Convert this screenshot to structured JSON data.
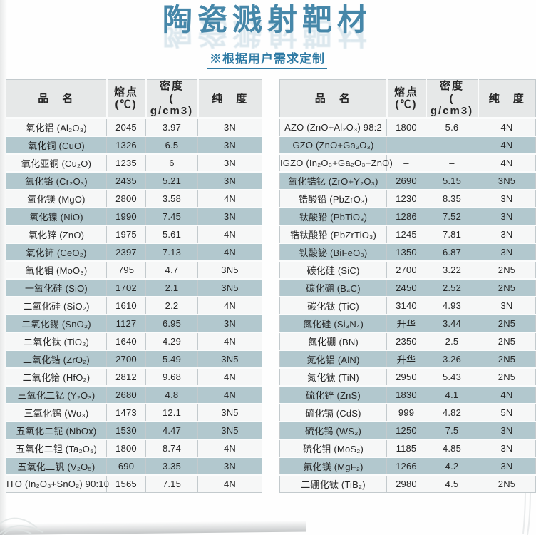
{
  "header": {
    "title": "陶瓷溅射靶材",
    "subtitle": "※根据用户需求定制"
  },
  "columns": [
    {
      "key": "product-name",
      "label": "品　名"
    },
    {
      "key": "melting-point",
      "label": "熔点(℃)"
    },
    {
      "key": "density",
      "label": "密度\n( g/cm3)"
    },
    {
      "key": "purity",
      "label": "纯　度"
    }
  ],
  "tables": [
    {
      "name": "oxide-targets-left",
      "rows": [
        [
          "氧化铝 (Al₂O₃)",
          "2045",
          "3.97",
          "3N"
        ],
        [
          "氧化铜 (CuO)",
          "1326",
          "6.5",
          "3N"
        ],
        [
          "氧化亚铜 (Cu₂O)",
          "1235",
          "6",
          "3N"
        ],
        [
          "氧化铬 (Cr₂O₃)",
          "2435",
          "5.21",
          "3N"
        ],
        [
          "氧化镁 (MgO)",
          "2800",
          "3.58",
          "4N"
        ],
        [
          "氧化镍 (NiO)",
          "1990",
          "7.45",
          "3N"
        ],
        [
          "氧化锌 (ZnO)",
          "1975",
          "5.61",
          "4N"
        ],
        [
          "氧化铈 (CeO₂)",
          "2397",
          "7.13",
          "4N"
        ],
        [
          "氧化钼 (MoO₃)",
          "795",
          "4.7",
          "3N5"
        ],
        [
          "一氧化硅 (SiO)",
          "1702",
          "2.1",
          "3N5"
        ],
        [
          "二氧化硅 (SiO₂)",
          "1610",
          "2.2",
          "4N"
        ],
        [
          "二氧化锡 (SnO₂)",
          "1127",
          "6.95",
          "3N"
        ],
        [
          "二氧化钛 (TiO₂)",
          "1640",
          "4.29",
          "4N"
        ],
        [
          "二氧化锆 (ZrO₂)",
          "2700",
          "5.49",
          "3N5"
        ],
        [
          "二氧化铪 (HfO₂)",
          "2812",
          "9.68",
          "4N"
        ],
        [
          "三氧化二钇 (Y₂O₃)",
          "2680",
          "4.8",
          "4N"
        ],
        [
          "三氧化钨 (Wo₃)",
          "1473",
          "12.1",
          "3N5"
        ],
        [
          "五氧化二铌 (NbOx)",
          "1530",
          "4.47",
          "3N5"
        ],
        [
          "五氧化二钽 (Ta₂O₅)",
          "1800",
          "8.74",
          "4N"
        ],
        [
          "五氧化二钒 (V₂O₅)",
          "690",
          "3.35",
          "3N"
        ],
        [
          "ITO (In₂O₃+SnO₂) 90:10",
          "1565",
          "7.15",
          "4N"
        ]
      ]
    },
    {
      "name": "compound-targets-right",
      "rows": [
        [
          "AZO (ZnO+Al₂O₃) 98:2",
          "1800",
          "5.6",
          "4N"
        ],
        [
          "GZO (ZnO+Ga₂O₃)",
          "–",
          "–",
          "4N"
        ],
        [
          "IGZO (In₂O₃+Ga₂O₃+ZnO)",
          "–",
          "–",
          "4N"
        ],
        [
          "氧化锆钇 (ZrO+Y₂O₃)",
          "2690",
          "5.15",
          "3N5"
        ],
        [
          "锆酸铅 (PbZrO₃)",
          "1230",
          "8.35",
          "3N"
        ],
        [
          "钛酸铅 (PbTiO₃)",
          "1286",
          "7.52",
          "3N"
        ],
        [
          "锆钛酸铅 (PbZrTiO₃)",
          "1245",
          "7.81",
          "3N"
        ],
        [
          "铁酸铋 (BiFeO₃)",
          "1350",
          "6.87",
          "3N"
        ],
        [
          "碳化硅 (SiC)",
          "2700",
          "3.22",
          "2N5"
        ],
        [
          "碳化硼 (B₄C)",
          "2450",
          "2.52",
          "2N5"
        ],
        [
          "碳化钛 (TiC)",
          "3140",
          "4.93",
          "3N"
        ],
        [
          "氮化硅 (Si₃N₄)",
          "升华",
          "3.44",
          "2N5"
        ],
        [
          "氮化硼 (BN)",
          "2350",
          "2.5",
          "2N5"
        ],
        [
          "氮化铝 (AlN)",
          "升华",
          "3.26",
          "2N5"
        ],
        [
          "氮化钛 (TiN)",
          "2950",
          "5.43",
          "2N5"
        ],
        [
          "硫化锌 (ZnS)",
          "1830",
          "4.1",
          "4N"
        ],
        [
          "硫化镉 (CdS)",
          "999",
          "4.82",
          "5N"
        ],
        [
          "硫化钨 (WS₂)",
          "1250",
          "7.5",
          "3N"
        ],
        [
          "硫化钼 (MoS₂)",
          "1185",
          "4.85",
          "3N"
        ],
        [
          "氟化镁 (MgF₂)",
          "1266",
          "4.2",
          "3N"
        ],
        [
          "二硼化钛 (TiB₂)",
          "2980",
          "4.5",
          "2N5"
        ]
      ]
    }
  ],
  "colors": {
    "title_color": "#4687a9",
    "subtitle_color": "#2e7aa4",
    "row_alt_color": "#b2c8ce",
    "row_light_color": "#f6f7f7",
    "header_bg": "#e6e8e8",
    "grid_line": "#c3cacd"
  }
}
